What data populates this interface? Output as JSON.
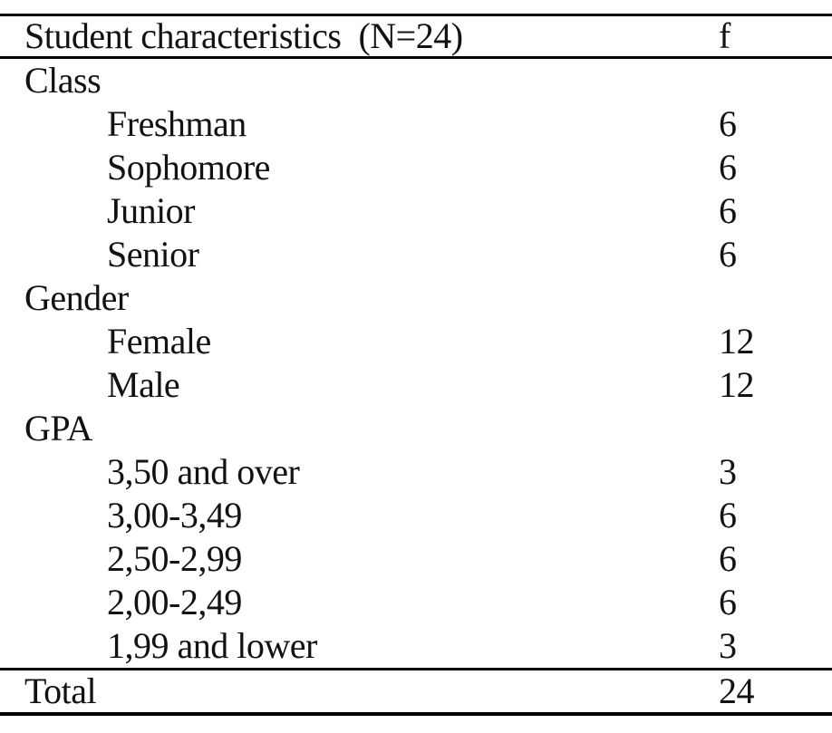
{
  "colors": {
    "background": "#ffffff",
    "text": "#121212",
    "rule": "#000000"
  },
  "table": {
    "title": "Student characteristics  (N=24)",
    "freq_header": "f",
    "rows": [
      {
        "label": "Class",
        "value": ""
      },
      {
        "label": "Freshman",
        "value": "6"
      },
      {
        "label": "Sophomore",
        "value": "6"
      },
      {
        "label": "Junior",
        "value": "6"
      },
      {
        "label": "Senior",
        "value": "6"
      },
      {
        "label": "Gender",
        "value": ""
      },
      {
        "label": "Female",
        "value": "12"
      },
      {
        "label": "Male",
        "value": "12"
      },
      {
        "label": "GPA",
        "value": ""
      },
      {
        "label": "3,50 and over",
        "value": "3"
      },
      {
        "label": "3,00-3,49",
        "value": "6"
      },
      {
        "label": "2,50-2,99",
        "value": "6"
      },
      {
        "label": "2,00-2,49",
        "value": "6"
      },
      {
        "label": "1,99 and lower",
        "value": "3"
      },
      {
        "label": "Total",
        "value": "24"
      }
    ]
  }
}
